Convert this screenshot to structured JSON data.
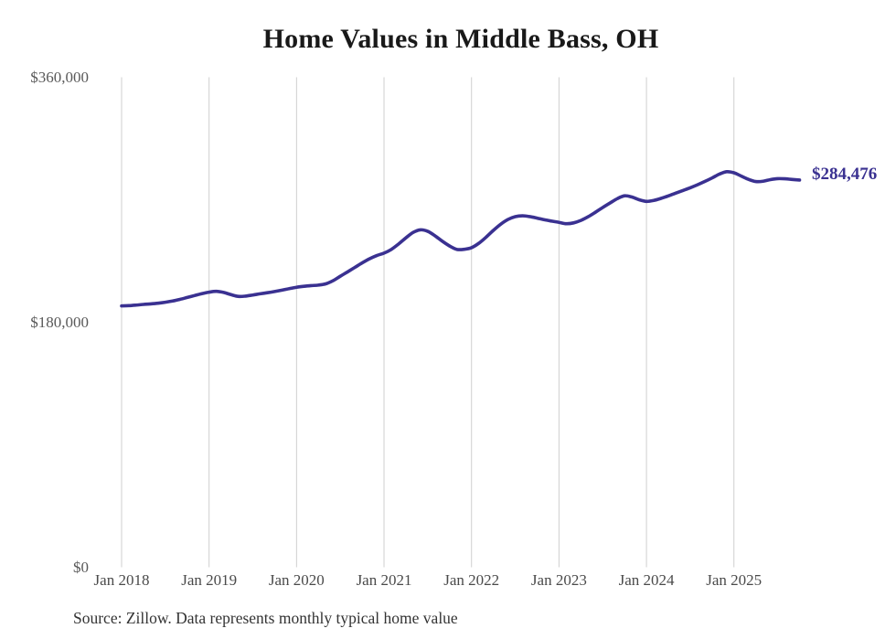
{
  "page": {
    "background": "#ffffff"
  },
  "chart_data": {
    "type": "line",
    "title": "Home Values in Middle Bass, OH",
    "source": "Source: Zillow. Data represents monthly typical home value",
    "end_label": "$284,476",
    "end_value": 284476,
    "frequency": "monthly",
    "legend": "none",
    "grid": "vertical-only",
    "line_color": "#3a3191",
    "grid_color": "#cfcfcf",
    "ylim": [
      0,
      360000
    ],
    "y_ticks": [
      {
        "label": "$360,000",
        "value": 360000
      },
      {
        "label": "$180,000",
        "value": 180000
      },
      {
        "label": "$0",
        "value": 0
      }
    ],
    "x_tick_labels": [
      "Jan 2018",
      "Jan 2019",
      "Jan 2020",
      "Jan 2021",
      "Jan 2022",
      "Jan 2023",
      "Jan 2024",
      "Jan 2025"
    ],
    "x_ticks_every_n_points": 12,
    "series": [
      {
        "name": "Typical home value",
        "x": [
          "2018-01",
          "2018-02",
          "2018-03",
          "2018-04",
          "2018-05",
          "2018-06",
          "2018-07",
          "2018-08",
          "2018-09",
          "2018-10",
          "2018-11",
          "2018-12",
          "2019-01",
          "2019-02",
          "2019-03",
          "2019-04",
          "2019-05",
          "2019-06",
          "2019-07",
          "2019-08",
          "2019-09",
          "2019-10",
          "2019-11",
          "2019-12",
          "2020-01",
          "2020-02",
          "2020-03",
          "2020-04",
          "2020-05",
          "2020-06",
          "2020-07",
          "2020-08",
          "2020-09",
          "2020-10",
          "2020-11",
          "2020-12",
          "2021-01",
          "2021-02",
          "2021-03",
          "2021-04",
          "2021-05",
          "2021-06",
          "2021-07",
          "2021-08",
          "2021-09",
          "2021-10",
          "2021-11",
          "2021-12",
          "2022-01",
          "2022-02",
          "2022-03",
          "2022-04",
          "2022-05",
          "2022-06",
          "2022-07",
          "2022-08",
          "2022-09",
          "2022-10",
          "2022-11",
          "2022-12",
          "2023-01",
          "2023-02",
          "2023-03",
          "2023-04",
          "2023-05",
          "2023-06",
          "2023-07",
          "2023-08",
          "2023-09",
          "2023-10",
          "2023-11",
          "2023-12",
          "2024-01",
          "2024-02",
          "2024-03",
          "2024-04",
          "2024-05",
          "2024-06",
          "2024-07",
          "2024-08",
          "2024-09",
          "2024-10",
          "2024-11",
          "2024-12",
          "2025-01",
          "2025-02",
          "2025-03",
          "2025-04",
          "2025-05",
          "2025-06",
          "2025-07",
          "2025-08",
          "2025-09",
          "2025-10"
        ],
        "values": [
          192000,
          192200,
          192600,
          193100,
          193500,
          194000,
          194700,
          195600,
          196800,
          198200,
          199600,
          201000,
          202100,
          202700,
          201900,
          200300,
          199000,
          199200,
          200000,
          200900,
          201700,
          202600,
          203600,
          204700,
          205700,
          206400,
          206900,
          207300,
          208200,
          210500,
          213800,
          217000,
          220300,
          223600,
          226600,
          229000,
          230800,
          233500,
          237500,
          242000,
          246000,
          247900,
          246800,
          243500,
          239500,
          236000,
          233500,
          233600,
          234800,
          238000,
          242500,
          247500,
          252000,
          255500,
          257600,
          258200,
          257600,
          256500,
          255300,
          254300,
          253400,
          252400,
          253000,
          254800,
          257500,
          260800,
          264300,
          267600,
          270800,
          272900,
          272000,
          270000,
          268800,
          269500,
          271000,
          272800,
          274800,
          276800,
          278800,
          281000,
          283400,
          286000,
          288800,
          290600,
          289800,
          287400,
          285000,
          283400,
          283600,
          284800,
          285500,
          285400,
          284900,
          284476
        ]
      }
    ]
  }
}
